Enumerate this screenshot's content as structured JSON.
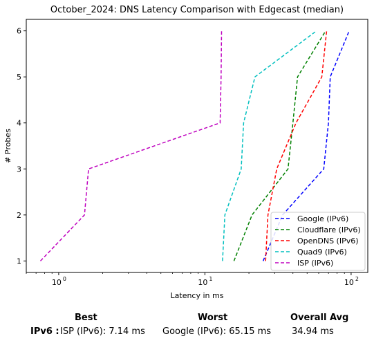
{
  "chart_data": {
    "type": "line",
    "title": "October_2024: DNS Latency Comparison with Edgecast (median)",
    "xlabel": "Latency in ms",
    "ylabel": "# Probes",
    "xscale": "log",
    "xlim": [
      0.6,
      130
    ],
    "ylim": [
      0.75,
      6.25
    ],
    "x_ticks": [
      {
        "value": 1,
        "label": "10",
        "exp": "0"
      },
      {
        "value": 10,
        "label": "10",
        "exp": "1"
      },
      {
        "value": 100,
        "label": "10",
        "exp": "2"
      }
    ],
    "y_ticks": [
      1,
      2,
      3,
      4,
      5,
      6
    ],
    "legend_position": "lower-right",
    "line_style": "dashed",
    "series": [
      {
        "name": "Google (IPv6)",
        "color": "#0000ff",
        "x": [
          25,
          34,
          65,
          70,
          72,
          97
        ],
        "y": [
          1,
          2,
          3,
          4,
          5,
          6
        ]
      },
      {
        "name": "Cloudflare (IPv6)",
        "color": "#008000",
        "x": [
          15.8,
          21,
          37,
          40,
          43,
          67
        ],
        "y": [
          1,
          2,
          3,
          4,
          5,
          6
        ]
      },
      {
        "name": "OpenDNS (IPv6)",
        "color": "#ff0000",
        "x": [
          26,
          27,
          31,
          42,
          63,
          68
        ],
        "y": [
          1,
          2,
          3,
          4,
          5,
          6
        ]
      },
      {
        "name": "Quad9 (IPv6)",
        "color": "#00bfbf",
        "x": [
          13.2,
          13.7,
          17.7,
          18.4,
          22,
          58
        ],
        "y": [
          1,
          2,
          3,
          4,
          5,
          6
        ]
      },
      {
        "name": "ISP (IPv6)",
        "color": "#bf00bf",
        "x": [
          0.75,
          1.5,
          1.6,
          12.7,
          12.9,
          13.0
        ],
        "y": [
          1,
          2,
          3,
          4,
          5,
          6
        ]
      }
    ]
  },
  "summary": {
    "best_header": "Best",
    "worst_header": "Worst",
    "avg_header": "Overall Avg",
    "row_label": "IPv6 :",
    "best_value": "ISP (IPv6): 7.14 ms",
    "worst_value": "Google (IPv6): 65.15 ms",
    "avg_value": "34.94 ms"
  }
}
